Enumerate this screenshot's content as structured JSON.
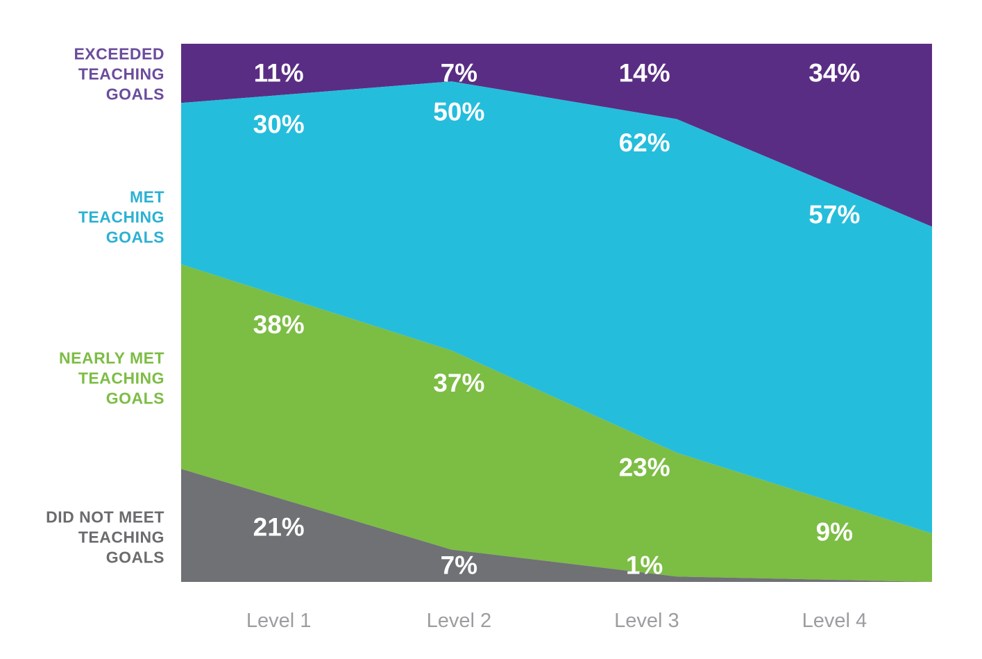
{
  "chart_data": {
    "type": "area",
    "stacking": "percent",
    "title": "",
    "xlabel": "",
    "ylabel": "",
    "ylim": [
      0,
      100
    ],
    "grid": false,
    "legend_position": "left",
    "background_color": "#FFFFFF",
    "value_label_color": "#FFFFFF",
    "axis_label_color": "#9C9DA0",
    "categories": [
      "Level 1",
      "Level 2",
      "Level 3",
      "Level 4"
    ],
    "series": [
      {
        "name": "EXCEEDED TEACHING GOALS",
        "label_lines": [
          "EXCEEDED",
          "TEACHING",
          "GOALS"
        ],
        "color": "#5A2D84",
        "label_color": "#6B4C9D",
        "values": [
          11,
          7,
          14,
          34
        ],
        "labels": [
          "11%",
          "7%",
          "14%",
          "34%"
        ]
      },
      {
        "name": "MET TEACHING GOALS",
        "label_lines": [
          "MET",
          "TEACHING",
          "GOALS"
        ],
        "color": "#25BDDC",
        "label_color": "#2BB1D3",
        "values": [
          30,
          50,
          62,
          57
        ],
        "labels": [
          "30%",
          "50%",
          "62%",
          "57%"
        ]
      },
      {
        "name": "NEARLY MET TEACHING GOALS",
        "label_lines": [
          "NEARLY MET",
          "TEACHING",
          "GOALS"
        ],
        "color": "#7CBD44",
        "label_color": "#7CBD44",
        "values": [
          38,
          37,
          23,
          9
        ],
        "labels": [
          "38%",
          "37%",
          "23%",
          "9%"
        ]
      },
      {
        "name": "DID NOT MEET TEACHING GOALS",
        "label_lines": [
          "DID NOT MEET",
          "TEACHING",
          "GOALS"
        ],
        "color": "#6F7174",
        "label_color": "#6A6B6D",
        "values": [
          21,
          7,
          1,
          0
        ],
        "labels": [
          "21%",
          "7%",
          "1%",
          ""
        ]
      }
    ]
  }
}
